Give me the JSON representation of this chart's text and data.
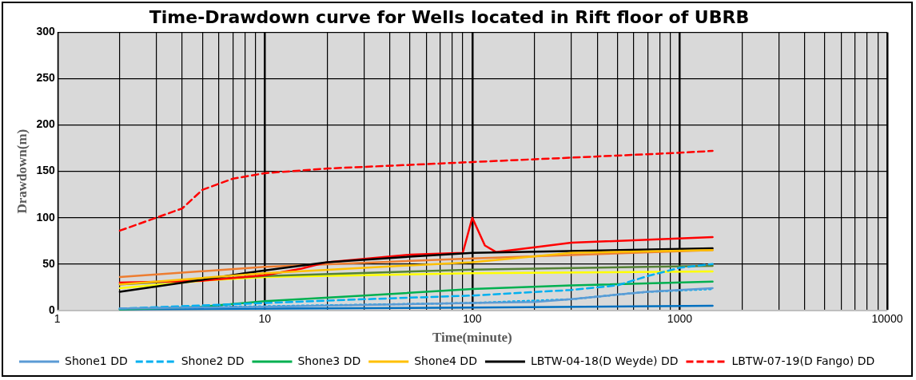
{
  "chart_data": {
    "type": "line",
    "title": "Time-Drawdown curve for Wells located in Rift floor of UBRB",
    "xlabel": "Time(minute)",
    "ylabel": "Drawdown(m)",
    "log": "x",
    "grid": true,
    "legend": "bottom",
    "marker": "none",
    "xlim": [
      1,
      10000
    ],
    "ylim": [
      0,
      300
    ],
    "xticks": [
      1,
      {
        "value": 2,
        "label": null
      },
      {
        "value": 3,
        "label": null
      },
      {
        "value": 4,
        "label": null
      },
      {
        "value": 5,
        "label": null
      },
      {
        "value": 6,
        "label": null
      },
      {
        "value": 7,
        "label": null
      },
      {
        "value": 8,
        "label": null
      },
      {
        "value": 9,
        "label": null
      },
      10,
      {
        "value": 20,
        "label": null
      },
      {
        "value": 30,
        "label": null
      },
      {
        "value": 40,
        "label": null
      },
      {
        "value": 50,
        "label": null
      },
      {
        "value": 60,
        "label": null
      },
      {
        "value": 70,
        "label": null
      },
      {
        "value": 80,
        "label": null
      },
      {
        "value": 90,
        "label": null
      },
      100,
      {
        "value": 200,
        "label": null
      },
      {
        "value": 300,
        "label": null
      },
      {
        "value": 400,
        "label": null
      },
      {
        "value": 500,
        "label": null
      },
      {
        "value": 600,
        "label": null
      },
      {
        "value": 700,
        "label": null
      },
      {
        "value": 800,
        "label": null
      },
      {
        "value": 900,
        "label": null
      },
      1000,
      {
        "value": 2000,
        "label": null
      },
      {
        "value": 3000,
        "label": null
      },
      {
        "value": 4000,
        "label": null
      },
      {
        "value": 5000,
        "label": null
      },
      {
        "value": 6000,
        "label": null
      },
      {
        "value": 7000,
        "label": null
      },
      {
        "value": 8000,
        "label": null
      },
      {
        "value": 9000,
        "label": null
      },
      10000
    ],
    "yticks": [
      0,
      50,
      100,
      150,
      200,
      250,
      300
    ],
    "series": [
      {
        "name": "Shone1 DD",
        "color": "#5b9bd5",
        "line_style": "solid",
        "x": [
          2,
          10,
          100,
          200,
          300,
          500,
          700,
          1000,
          1440
        ],
        "values": [
          2,
          4,
          8,
          9,
          12,
          17,
          20,
          22,
          24
        ]
      },
      {
        "name": "Shone2 DD",
        "color": "#00b0f0",
        "line_style": "dashed",
        "x": [
          2,
          10,
          30,
          100,
          300,
          500,
          700,
          1000,
          1440
        ],
        "values": [
          2,
          8,
          12,
          16,
          22,
          27,
          37,
          46,
          50
        ]
      },
      {
        "name": "Shone3 DD",
        "color": "#00b050",
        "line_style": "solid",
        "x": [
          2,
          5,
          8,
          10,
          30,
          100,
          300,
          1440
        ],
        "values": [
          1,
          4,
          8,
          10,
          16,
          23,
          27,
          31
        ]
      },
      {
        "name": "Shone4 DD",
        "color": "#ffc000",
        "line_style": "solid",
        "x": [
          2,
          5,
          10,
          30,
          100,
          300,
          1440
        ],
        "values": [
          28,
          35,
          40,
          46,
          52,
          62,
          65
        ]
      },
      {
        "name": "LBTW-04-18(D Weyde) DD",
        "color": "#000000",
        "line_style": "solid",
        "x": [
          2,
          5,
          8,
          10,
          20,
          50,
          100,
          1440
        ],
        "values": [
          20,
          33,
          40,
          43,
          52,
          58,
          62,
          67
        ]
      },
      {
        "name": "LBTW-07-19(D Fango) DD",
        "color": "#ff0000",
        "line_style": "dashed",
        "x": [
          2,
          3,
          4,
          5,
          7,
          10,
          20,
          100,
          1000,
          1440
        ],
        "values": [
          86,
          100,
          110,
          130,
          142,
          148,
          153,
          160,
          170,
          172
        ]
      },
      {
        "color": "#ff0000",
        "line_style": "solid",
        "x": [
          2,
          5,
          10,
          15,
          20,
          50,
          90,
          100,
          115,
          130,
          200,
          300,
          1440
        ],
        "values": [
          30,
          32,
          38,
          45,
          52,
          60,
          62,
          100,
          70,
          63,
          68,
          73,
          79
        ]
      },
      {
        "color": "#ed7d31",
        "line_style": "solid",
        "x": [
          2,
          10,
          100,
          1440
        ],
        "values": [
          36,
          47,
          56,
          65
        ]
      },
      {
        "color": "#548235",
        "line_style": "solid",
        "x": [
          2,
          10,
          100,
          1440
        ],
        "values": [
          28,
          37,
          44,
          48
        ]
      },
      {
        "color": "#ffff00",
        "line_style": "solid",
        "x": [
          2,
          5,
          10,
          100,
          1440
        ],
        "values": [
          24,
          32,
          36,
          40,
          42
        ]
      },
      {
        "color": "#00b0f0",
        "line_style": "dotted",
        "x": [
          2,
          100,
          300,
          500,
          700,
          1440
        ],
        "values": [
          2,
          8,
          12,
          17,
          20,
          23
        ]
      },
      {
        "color": "#0070c0",
        "line_style": "solid",
        "x": [
          2,
          100,
          1440
        ],
        "values": [
          1,
          3,
          5
        ]
      }
    ]
  }
}
